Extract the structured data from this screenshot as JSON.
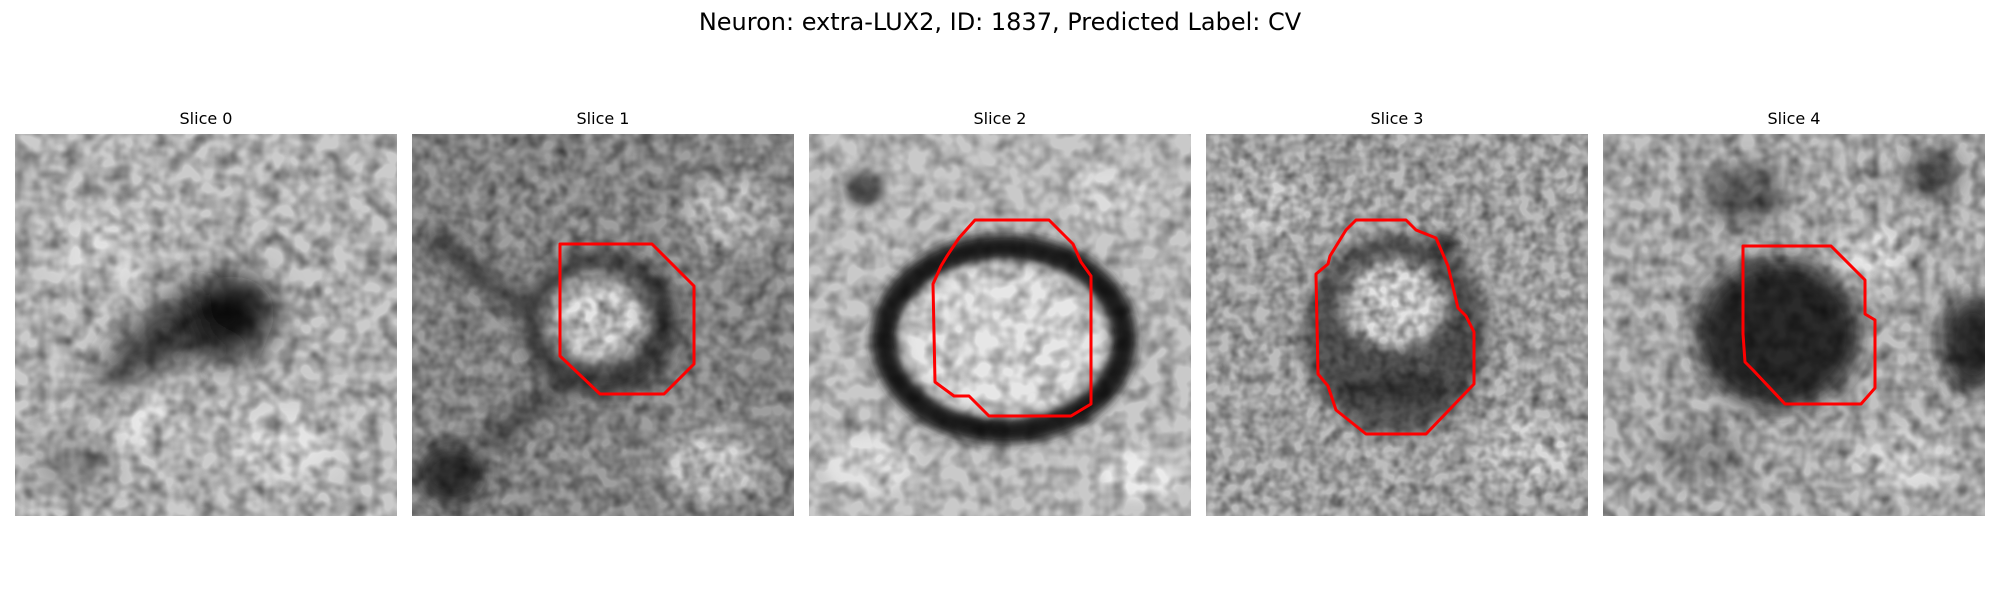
{
  "figure": {
    "title": "Neuron: extra-LUX2, ID: 1837, Predicted Label: CV",
    "outline_color": "#ff0000"
  },
  "slices": [
    {
      "label": "Slice 0",
      "has_outline": false
    },
    {
      "label": "Slice 1",
      "has_outline": true
    },
    {
      "label": "Slice 2",
      "has_outline": true
    },
    {
      "label": "Slice 3",
      "has_outline": true
    },
    {
      "label": "Slice 4",
      "has_outline": true
    }
  ]
}
